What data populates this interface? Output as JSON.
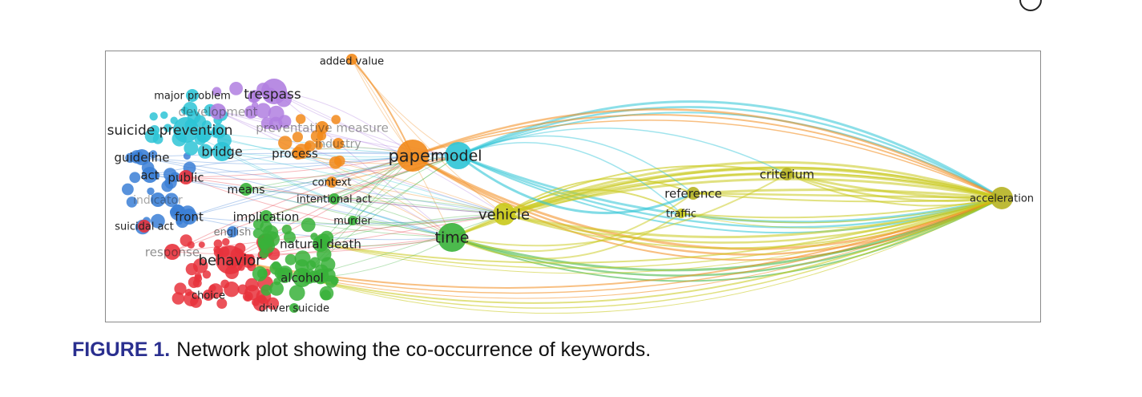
{
  "figure": {
    "label": "FIGURE 1.",
    "caption": "Network plot showing the co-occurrence of keywords."
  },
  "colors": {
    "red": "#e8323c",
    "green": "#38b23a",
    "blue": "#3b7fd6",
    "yellow": "#c9c91a",
    "purple": "#b07fe0",
    "cyan": "#2ec4d6",
    "orange": "#f28a1a",
    "olive": "#b6b322"
  },
  "clusters": [
    "red",
    "green",
    "blue",
    "yellow",
    "purple",
    "cyan",
    "orange"
  ],
  "nodes": [
    {
      "id": "added-value",
      "label": "added value",
      "cluster": "orange"
    },
    {
      "id": "major-problem",
      "label": "major problem",
      "cluster": "cyan"
    },
    {
      "id": "trespass",
      "label": "trespass",
      "cluster": "purple"
    },
    {
      "id": "development",
      "label": "development",
      "cluster": "purple"
    },
    {
      "id": "suicide-prevention",
      "label": "suicide prevention",
      "cluster": "cyan"
    },
    {
      "id": "preventative-measure",
      "label": "preventative measure",
      "cluster": "orange"
    },
    {
      "id": "industry",
      "label": "industry",
      "cluster": "orange"
    },
    {
      "id": "bridge",
      "label": "bridge",
      "cluster": "cyan"
    },
    {
      "id": "process",
      "label": "process",
      "cluster": "orange"
    },
    {
      "id": "guideline",
      "label": "guideline",
      "cluster": "blue"
    },
    {
      "id": "paper",
      "label": "paper",
      "cluster": "orange"
    },
    {
      "id": "model",
      "label": "model",
      "cluster": "cyan"
    },
    {
      "id": "act",
      "label": "act",
      "cluster": "blue"
    },
    {
      "id": "public",
      "label": "public",
      "cluster": "red"
    },
    {
      "id": "means",
      "label": "means",
      "cluster": "green"
    },
    {
      "id": "context",
      "label": "context",
      "cluster": "orange"
    },
    {
      "id": "intentional-act",
      "label": "intentional act",
      "cluster": "green"
    },
    {
      "id": "indicator",
      "label": "indicator",
      "cluster": "blue"
    },
    {
      "id": "front",
      "label": "front",
      "cluster": "blue"
    },
    {
      "id": "implication",
      "label": "implication",
      "cluster": "green"
    },
    {
      "id": "murder",
      "label": "murder",
      "cluster": "green"
    },
    {
      "id": "suicidal-act",
      "label": "suicidal act",
      "cluster": "red"
    },
    {
      "id": "english",
      "label": "english",
      "cluster": "blue"
    },
    {
      "id": "natural-death",
      "label": "natural death",
      "cluster": "green"
    },
    {
      "id": "response",
      "label": "response",
      "cluster": "red"
    },
    {
      "id": "behavior",
      "label": "behavior",
      "cluster": "red"
    },
    {
      "id": "alcohol",
      "label": "alcohol",
      "cluster": "green"
    },
    {
      "id": "choice",
      "label": "choice",
      "cluster": "red"
    },
    {
      "id": "driver-suicide",
      "label": "driver suicide",
      "cluster": "green"
    },
    {
      "id": "time",
      "label": "time",
      "cluster": "green"
    },
    {
      "id": "vehicle",
      "label": "vehicle",
      "cluster": "yellow"
    },
    {
      "id": "reference",
      "label": "reference",
      "cluster": "yellow"
    },
    {
      "id": "traffic",
      "label": "traffic",
      "cluster": "yellow"
    },
    {
      "id": "criterium",
      "label": "criterium",
      "cluster": "yellow"
    },
    {
      "id": "acceleration",
      "label": "acceleration",
      "cluster": "yellow"
    }
  ]
}
